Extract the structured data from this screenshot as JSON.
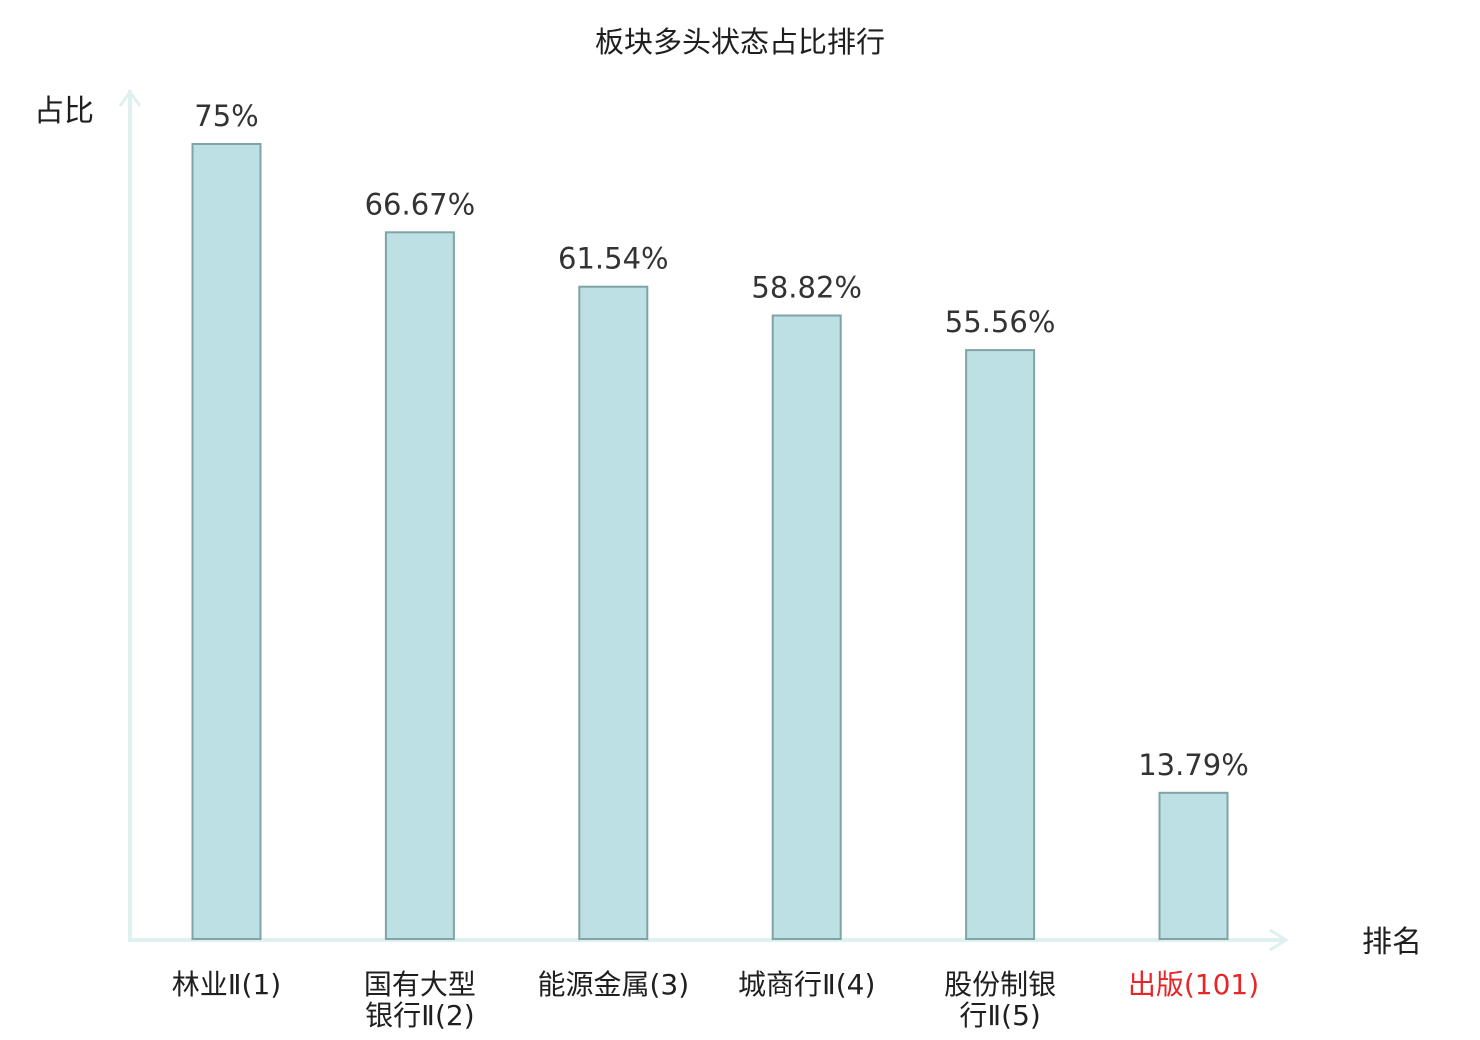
{
  "chart_data": {
    "type": "bar",
    "title": "板块多头状态占比排行",
    "ylabel": "占比",
    "xlabel": "排名",
    "ylim": [
      0,
      80
    ],
    "grid": false,
    "legend": "none",
    "categories": [
      {
        "name": "林业Ⅱ",
        "rank": "(1)",
        "highlight": false
      },
      {
        "name": "国有大型银行Ⅱ",
        "rank": "(2)",
        "highlight": false
      },
      {
        "name": "能源金属",
        "rank": "(3)",
        "highlight": false
      },
      {
        "name": "城商行Ⅱ",
        "rank": "(4)",
        "highlight": false
      },
      {
        "name": "股份制银行Ⅱ",
        "rank": "(5)",
        "highlight": false
      },
      {
        "name": "出版",
        "rank": "(101)",
        "highlight": true
      }
    ],
    "category_lines": [
      [
        "林业Ⅱ(1)"
      ],
      [
        "国有大型",
        "银行Ⅱ(2)"
      ],
      [
        "能源金属(3)"
      ],
      [
        "城商行Ⅱ(4)"
      ],
      [
        "股份制银",
        "行Ⅱ(5)"
      ],
      [
        "出版(101)"
      ]
    ],
    "values": [
      75,
      66.67,
      61.54,
      58.82,
      55.56,
      13.79
    ],
    "value_labels": [
      "75%",
      "66.67%",
      "61.54%",
      "58.82%",
      "55.56%",
      "13.79%"
    ]
  },
  "colors": {
    "bar_fill": "#bce0e3",
    "bar_stroke": "#7fa3a6",
    "axis": "#dff1ef",
    "text": "#1f1f1f",
    "value_text": "#333333",
    "highlight": "#e8262a"
  }
}
